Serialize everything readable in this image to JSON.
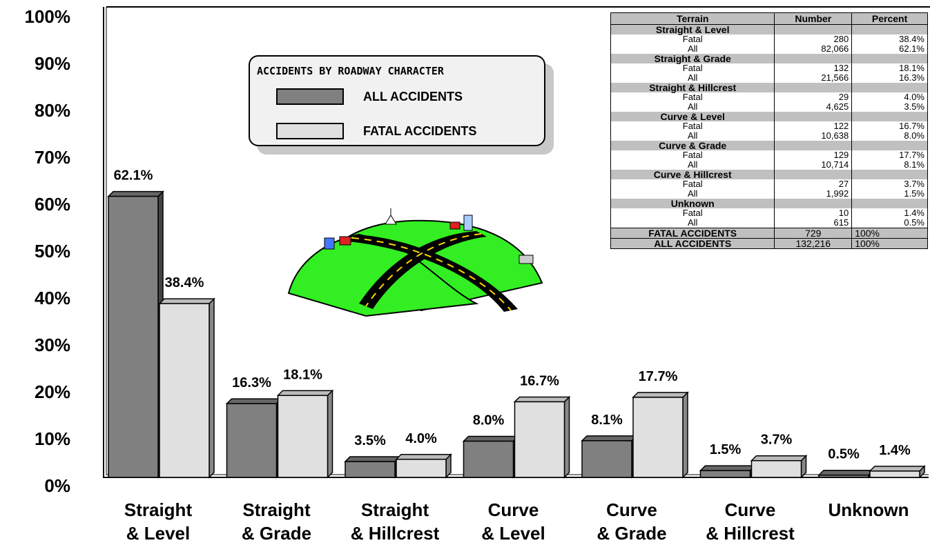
{
  "colors": {
    "all": "#808080",
    "fatal": "#e0e0e0",
    "edge": "#000000",
    "land": "#33ee22",
    "road": "#000000",
    "roadline": "#ffd700"
  },
  "legend": {
    "title": "ACCIDENTS BY ROADWAY CHARACTER",
    "all_label": "ALL ACCIDENTS",
    "fatal_label": "FATAL ACCIDENTS"
  },
  "table": {
    "headers": [
      "Terrain",
      "Number",
      "Percent"
    ],
    "groups": [
      {
        "name": "Straight & Level",
        "rows": [
          {
            "label": "Fatal",
            "number": "280",
            "percent": "38.4%"
          },
          {
            "label": "All",
            "number": "82,066",
            "percent": "62.1%"
          }
        ]
      },
      {
        "name": "Straight & Grade",
        "rows": [
          {
            "label": "Fatal",
            "number": "132",
            "percent": "18.1%"
          },
          {
            "label": "All",
            "number": "21,566",
            "percent": "16.3%"
          }
        ]
      },
      {
        "name": "Straight & Hillcrest",
        "rows": [
          {
            "label": "Fatal",
            "number": "29",
            "percent": "4.0%"
          },
          {
            "label": "All",
            "number": "4,625",
            "percent": "3.5%"
          }
        ]
      },
      {
        "name": "Curve & Level",
        "rows": [
          {
            "label": "Fatal",
            "number": "122",
            "percent": "16.7%"
          },
          {
            "label": "All",
            "number": "10,638",
            "percent": "8.0%"
          }
        ]
      },
      {
        "name": "Curve & Grade",
        "rows": [
          {
            "label": "Fatal",
            "number": "129",
            "percent": "17.7%"
          },
          {
            "label": "All",
            "number": "10,714",
            "percent": "8.1%"
          }
        ]
      },
      {
        "name": "Curve & Hillcrest",
        "rows": [
          {
            "label": "Fatal",
            "number": "27",
            "percent": "3.7%"
          },
          {
            "label": "All",
            "number": "1,992",
            "percent": "1.5%"
          }
        ]
      },
      {
        "name": "Unknown",
        "rows": [
          {
            "label": "Fatal",
            "number": "10",
            "percent": "1.4%"
          },
          {
            "label": "All",
            "number": "615",
            "percent": "0.5%"
          }
        ]
      }
    ],
    "totals": [
      {
        "label": "FATAL ACCIDENTS",
        "number": "729",
        "percent": "100%"
      },
      {
        "label": "ALL ACCIDENTS",
        "number": "132,216",
        "percent": "100%"
      }
    ]
  },
  "chart_data": {
    "type": "bar",
    "title": "",
    "xlabel": "",
    "ylabel": "",
    "ylim": [
      0,
      100
    ],
    "yticks": [
      "0%",
      "10%",
      "20%",
      "30%",
      "40%",
      "50%",
      "60%",
      "70%",
      "80%",
      "90%",
      "100%"
    ],
    "categories": [
      [
        "Straight",
        "& Level"
      ],
      [
        "Straight",
        "& Grade"
      ],
      [
        "Straight",
        "& Hillcrest"
      ],
      [
        "Curve",
        "& Level"
      ],
      [
        "Curve",
        "& Grade"
      ],
      [
        "Curve",
        "& Hillcrest"
      ],
      [
        "Unknown"
      ]
    ],
    "series": [
      {
        "name": "ALL ACCIDENTS",
        "values": [
          62.1,
          16.3,
          3.5,
          8.0,
          8.1,
          1.5,
          0.5
        ],
        "labels": [
          "62.1%",
          "16.3%",
          "3.5%",
          "8.0%",
          "8.1%",
          "1.5%",
          "0.5%"
        ]
      },
      {
        "name": "FATAL ACCIDENTS",
        "values": [
          38.4,
          18.1,
          4.0,
          16.7,
          17.7,
          3.7,
          1.4
        ],
        "labels": [
          "38.4%",
          "18.1%",
          "4.0%",
          "16.7%",
          "17.7%",
          "3.7%",
          "1.4%"
        ]
      }
    ],
    "grid": false,
    "legend": "top-center"
  }
}
